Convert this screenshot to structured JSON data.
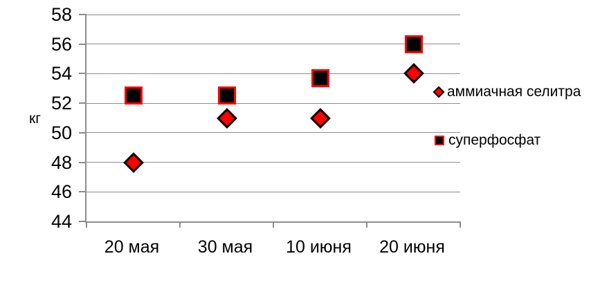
{
  "chart_data": {
    "type": "scatter",
    "ylabel": "кг",
    "categories": [
      "20 мая",
      "30 мая",
      "10 июня",
      "20 июня"
    ],
    "series": [
      {
        "name": "аммиачная селитра",
        "marker": "diamond",
        "fill": "#ff0000",
        "border_color": "#000000",
        "values": [
          48,
          51,
          51,
          54
        ]
      },
      {
        "name": "суперфосфат",
        "marker": "square",
        "fill": "#000000",
        "border_color": "#ff0000",
        "values": [
          52.5,
          52.5,
          53.7,
          56
        ]
      }
    ],
    "ylim": [
      44,
      58
    ],
    "yticks": [
      58,
      56,
      54,
      52,
      50,
      48,
      46,
      44
    ],
    "grid": true,
    "legend_position": "right",
    "colors": {
      "marker_red": "#ff0000",
      "marker_black": "#000000",
      "axis_gray": "#8d8d8d",
      "text": "#000000",
      "background": "#ffffff"
    }
  }
}
